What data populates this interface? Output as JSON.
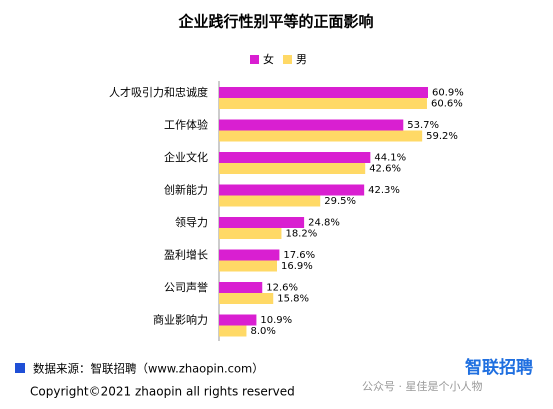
{
  "chart_data": {
    "type": "hbar",
    "title": "企业践行性别平等的正面影响",
    "categories": [
      "人才吸引力和忠诚度",
      "工作体验",
      "企业文化",
      "创新能力",
      "领导力",
      "盈利增长",
      "公司声誉",
      "商业影响力"
    ],
    "series": [
      {
        "name": "女",
        "color": "#d91fd1",
        "values": [
          60.9,
          53.7,
          44.1,
          42.3,
          24.8,
          17.6,
          12.6,
          10.9
        ],
        "value_labels": [
          "60.9%",
          "53.7%",
          "44.1%",
          "42.3%",
          "24.8%",
          "17.6%",
          "12.6%",
          "10.9%"
        ]
      },
      {
        "name": "男",
        "color": "#ffd966",
        "values": [
          60.6,
          59.2,
          42.6,
          29.5,
          18.2,
          16.9,
          15.8,
          8.0
        ],
        "value_labels": [
          "60.6%",
          "59.2%",
          "42.6%",
          "29.5%",
          "18.2%",
          "16.9%",
          "15.8%",
          "8.0%"
        ]
      }
    ],
    "legend": "top"
  },
  "footer": {
    "source": "数据来源：智联招聘（www.zhaopin.com）",
    "logo": "智联招聘",
    "copyright": "Copyright©2021 zhaopin all rights reserved",
    "watermark": "公众号 · 星佳是个小人物"
  }
}
